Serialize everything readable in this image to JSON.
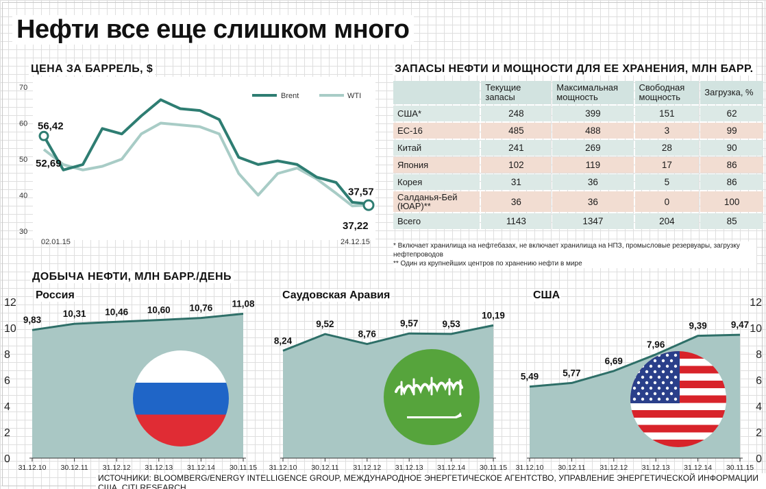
{
  "title": "Нефти все еще слишком много",
  "price_section": {
    "title": "ЦЕНА ЗА БАРРЕЛЬ, $"
  },
  "storage_section": {
    "title": "ЗАПАСЫ НЕФТИ И МОЩНОСТИ ДЛЯ ЕЕ ХРАНЕНИЯ, МЛН БАРР.",
    "headers": [
      "",
      "Текущие запасы",
      "Максимальная мощность",
      "Свободная мощность",
      "Загрузка, %"
    ],
    "rows": [
      {
        "name": "США*",
        "current": "248",
        "max": "399",
        "free": "151",
        "load": "62"
      },
      {
        "name": "ЕС-16",
        "current": "485",
        "max": "488",
        "free": "3",
        "load": "99"
      },
      {
        "name": "Китай",
        "current": "241",
        "max": "269",
        "free": "28",
        "load": "90"
      },
      {
        "name": "Япония",
        "current": "102",
        "max": "119",
        "free": "17",
        "load": "86"
      },
      {
        "name": "Корея",
        "current": "31",
        "max": "36",
        "free": "5",
        "load": "86"
      },
      {
        "name": "Салданья-Бей (ЮАР)**",
        "current": "36",
        "max": "36",
        "free": "0",
        "load": "100"
      },
      {
        "name": "Всего",
        "current": "1143",
        "max": "1347",
        "free": "204",
        "load": "85"
      }
    ],
    "notes": [
      "* Включает хранилища на нефтебазах, не включает хранилища на НПЗ, промысловые резервуары, загрузку нефтепроводов",
      "** Один из крупнейших центров по хранению нефти в мире"
    ]
  },
  "production_section": {
    "title": "ДОБЫЧА НЕФТИ, МЛН БАРР./ДЕНЬ"
  },
  "source": "ИСТОЧНИКИ: BLOOMBERG/ENERGY INTELLIGENCE GROUP, МЕЖДУНАРОДНОЕ ЭНЕРГЕТИЧЕСКОЕ АГЕНТСТВО, УПРАВЛЕНИЕ ЭНЕРГЕТИЧЕСКОЙ ИНФОРМАЦИИ США, CITI RESEARCH",
  "colors": {
    "brent": "#2e7d72",
    "wti": "#a8ccc6",
    "area": "#a9c7c4",
    "row_alt": "#f2ddd2",
    "row": "#dce9e6"
  },
  "flags": [
    "russia-flag",
    "saudi-arabia-flag",
    "usa-flag"
  ],
  "chart_data": [
    {
      "type": "line",
      "title": "ЦЕНА ЗА БАРРЕЛЬ, $",
      "ylim": [
        30,
        70
      ],
      "yticks": [
        30,
        40,
        50,
        60,
        70
      ],
      "x_range": [
        "02.01.15",
        "24.12.15"
      ],
      "xtick_labels": [
        "02.01.15",
        "24.12.15"
      ],
      "x_positions": [
        0,
        0.06,
        0.12,
        0.18,
        0.24,
        0.3,
        0.36,
        0.42,
        0.48,
        0.54,
        0.6,
        0.66,
        0.72,
        0.78,
        0.84,
        0.9,
        0.95,
        1.0
      ],
      "series": [
        {
          "name": "Brent",
          "values": [
            56.42,
            47,
            48.5,
            58.5,
            57,
            62,
            66.5,
            64,
            63.5,
            61,
            50.5,
            48.5,
            49.5,
            48.5,
            45,
            43.5,
            38,
            37.57
          ]
        },
        {
          "name": "WTI",
          "values": [
            52.69,
            48.5,
            47,
            48,
            50,
            57,
            60,
            59.5,
            59,
            57,
            46,
            40,
            46,
            47.5,
            44.5,
            40.5,
            37,
            37.22
          ]
        }
      ],
      "annotations": [
        {
          "text": "56,42",
          "series": "Brent",
          "x": "02.01.15",
          "value": 56.42
        },
        {
          "text": "52,69",
          "series": "WTI",
          "x": "02.01.15",
          "value": 52.69
        },
        {
          "text": "37,57",
          "series": "Brent",
          "x": "24.12.15",
          "value": 37.57
        },
        {
          "text": "37,22",
          "series": "WTI",
          "x": "24.12.15",
          "value": 37.22
        }
      ]
    },
    {
      "type": "area",
      "title": "ДОБЫЧА НЕФТИ, МЛН БАРР./ДЕНЬ",
      "ylim": [
        0,
        12
      ],
      "yticks": [
        0,
        2,
        4,
        6,
        8,
        10,
        12
      ],
      "categories": [
        "31.12.10",
        "30.12.11",
        "31.12.12",
        "31.12.13",
        "31.12.14",
        "30.11.15"
      ],
      "series": [
        {
          "name": "Россия",
          "values": [
            9.83,
            10.31,
            10.46,
            10.6,
            10.76,
            11.08
          ],
          "labels": [
            "9,83",
            "10,31",
            "10,46",
            "10,60",
            "10,76",
            "11,08"
          ]
        },
        {
          "name": "Саудовская Аравия",
          "values": [
            8.24,
            9.52,
            8.76,
            9.57,
            9.53,
            10.19
          ],
          "labels": [
            "8,24",
            "9,52",
            "8,76",
            "9,57",
            "9,53",
            "10,19"
          ]
        },
        {
          "name": "США",
          "values": [
            5.49,
            5.77,
            6.69,
            7.96,
            9.39,
            9.47
          ],
          "labels": [
            "5,49",
            "5,77",
            "6,69",
            "7,96",
            "9,39",
            "9,47"
          ]
        }
      ]
    }
  ]
}
